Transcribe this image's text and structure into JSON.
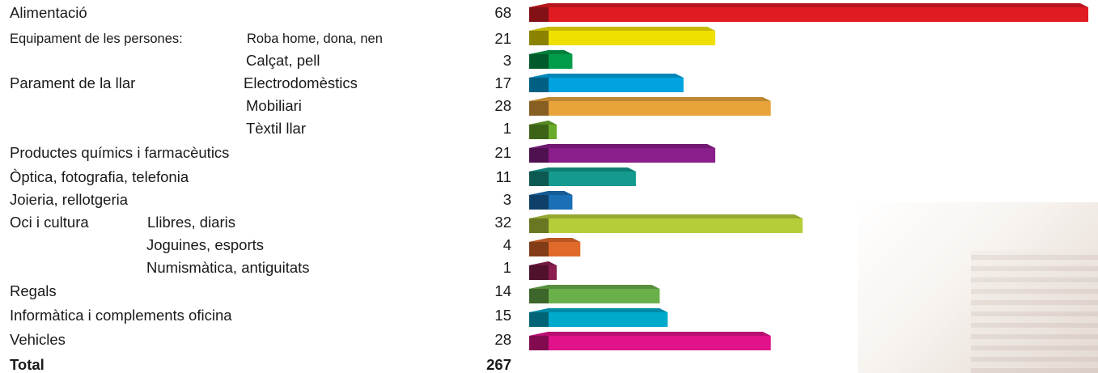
{
  "rows": [
    {
      "level1": "Alimentació",
      "level2": "",
      "value_label": "68"
    },
    {
      "level1": "Equipament de les persones:",
      "level2": "Roba home, dona, nen",
      "value_label": "21"
    },
    {
      "level1": "",
      "level2": "Calçat, pell",
      "value_label": "3"
    },
    {
      "level1": "Parament de la llar",
      "level2": "Electrodomèstics",
      "value_label": "17"
    },
    {
      "level1": "",
      "level2": "Mobiliari",
      "value_label": "28"
    },
    {
      "level1": "",
      "level2": "Tèxtil llar",
      "value_label": "1"
    },
    {
      "level1": "Productes químics i farmacèutics",
      "level2": "",
      "value_label": "21"
    },
    {
      "level1": "Òptica, fotografia, telefonia",
      "level2": "",
      "value_label": "11"
    },
    {
      "level1": "Joieria, rellotgeria",
      "level2": "",
      "value_label": "3"
    },
    {
      "level1": "Oci i cultura",
      "level2": "Llibres, diaris",
      "value_label": "32"
    },
    {
      "level1": "",
      "level2": "Joguines, esports",
      "value_label": "4"
    },
    {
      "level1": "",
      "level2": "Numismàtica, antiguitats",
      "value_label": "1"
    },
    {
      "level1": "Regals",
      "level2": "",
      "value_label": "14"
    },
    {
      "level1": "Informàtica i complements oficina",
      "level2": "",
      "value_label": "15"
    },
    {
      "level1": "Vehicles",
      "level2": "",
      "value_label": "28"
    }
  ],
  "total": {
    "label": "Total",
    "value": "267"
  },
  "chart_data": {
    "type": "bar",
    "orientation": "horizontal",
    "categories": [
      "Alimentació",
      "Equipament de les persones: Roba home, dona, nen",
      "Equipament de les persones: Calçat, pell",
      "Parament de la llar: Electrodomèstics",
      "Parament de la llar: Mobiliari",
      "Parament de la llar: Tèxtil llar",
      "Productes químics i farmacèutics",
      "Òptica, fotografia, telefonia",
      "Joieria, rellotgeria",
      "Oci i cultura: Llibres, diaris",
      "Oci i cultura: Joguines, esports",
      "Oci i cultura: Numismàtica, antiguitats",
      "Regals",
      "Informàtica i complements oficina",
      "Vehicles"
    ],
    "values": [
      68,
      21,
      3,
      17,
      28,
      1,
      21,
      11,
      3,
      32,
      4,
      1,
      14,
      15,
      28
    ],
    "colors": [
      "#e01b22",
      "#f0e000",
      "#009c4a",
      "#00a3e0",
      "#e8a33a",
      "#6aaa2a",
      "#8a1e8a",
      "#149a8e",
      "#1a6fb5",
      "#b6cd3a",
      "#e06a2a",
      "#8a1e4e",
      "#6ab04a",
      "#00aacc",
      "#e0138a"
    ],
    "total": 267
  }
}
